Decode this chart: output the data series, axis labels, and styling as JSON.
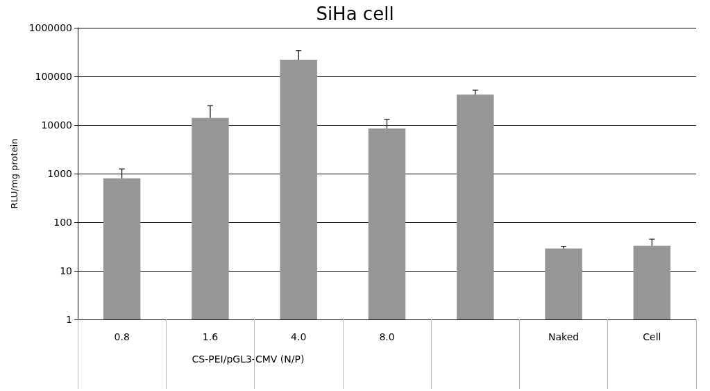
{
  "chart_data": {
    "type": "bar",
    "title": "SiHa cell",
    "ylabel": "RLU/mg protein",
    "xlabel": "CS-PEI/pGL3-CMV (N/P)",
    "categories": [
      "0.8",
      "1.6",
      "4.0",
      "8.0",
      null,
      "Naked",
      "Cell"
    ],
    "values": [
      800,
      14000,
      220000,
      8500,
      42000,
      29,
      33
    ],
    "errors": [
      [
        800,
        1250
      ],
      [
        14000,
        25000
      ],
      [
        220000,
        340000
      ],
      [
        8500,
        13000
      ],
      [
        42000,
        52000
      ],
      [
        29,
        32
      ],
      [
        33,
        45
      ]
    ],
    "color": "#969696",
    "log": "y",
    "ylim": [
      1,
      1000000
    ],
    "yticks": [
      1,
      10,
      100,
      1000,
      10000,
      100000,
      1000000
    ],
    "grid": "y"
  }
}
